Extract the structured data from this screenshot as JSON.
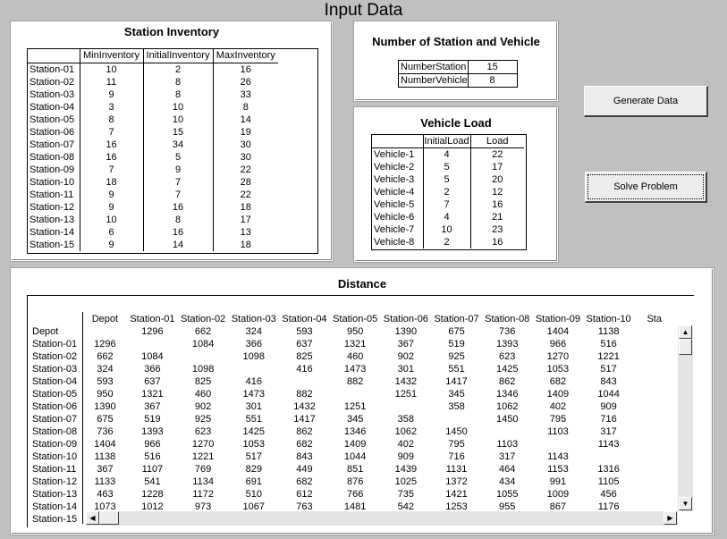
{
  "window": {
    "title": "Input Data"
  },
  "inventory": {
    "title": "Station Inventory",
    "headers": [
      "",
      "MinInventory",
      "InitialInventory",
      "MaxInventory"
    ],
    "rows": [
      [
        "Station-01",
        "10",
        "2",
        "16"
      ],
      [
        "Station-02",
        "11",
        "8",
        "26"
      ],
      [
        "Station-03",
        "9",
        "8",
        "33"
      ],
      [
        "Station-04",
        "3",
        "10",
        "8"
      ],
      [
        "Station-05",
        "8",
        "10",
        "14"
      ],
      [
        "Station-06",
        "7",
        "15",
        "19"
      ],
      [
        "Station-07",
        "16",
        "34",
        "30"
      ],
      [
        "Station-08",
        "16",
        "5",
        "30"
      ],
      [
        "Station-09",
        "7",
        "9",
        "22"
      ],
      [
        "Station-10",
        "18",
        "7",
        "28"
      ],
      [
        "Station-11",
        "9",
        "7",
        "22"
      ],
      [
        "Station-12",
        "9",
        "16",
        "18"
      ],
      [
        "Station-13",
        "10",
        "8",
        "17"
      ],
      [
        "Station-14",
        "6",
        "16",
        "13"
      ],
      [
        "Station-15",
        "9",
        "14",
        "18"
      ]
    ]
  },
  "counts": {
    "title": "Number of Station and Vehicle",
    "rows": [
      [
        "NumberStation",
        "15"
      ],
      [
        "NumberVehicle",
        "8"
      ]
    ]
  },
  "vehicles": {
    "title": "Vehicle Load",
    "headers": [
      "",
      "InitialLoad",
      "Load"
    ],
    "rows": [
      [
        "Vehicle-1",
        "4",
        "22"
      ],
      [
        "Vehicle-2",
        "5",
        "17"
      ],
      [
        "Vehicle-3",
        "5",
        "20"
      ],
      [
        "Vehicle-4",
        "2",
        "12"
      ],
      [
        "Vehicle-5",
        "7",
        "16"
      ],
      [
        "Vehicle-6",
        "4",
        "21"
      ],
      [
        "Vehicle-7",
        "10",
        "23"
      ],
      [
        "Vehicle-8",
        "2",
        "16"
      ]
    ]
  },
  "buttons": {
    "generate": "Generate Data",
    "solve": "Solve Problem"
  },
  "distance": {
    "title": "Distance",
    "headers": [
      "",
      "Depot",
      "Station-01",
      "Station-02",
      "Station-03",
      "Station-04",
      "Station-05",
      "Station-06",
      "Station-07",
      "Station-08",
      "Station-09",
      "Station-10",
      "Sta"
    ],
    "rows": [
      [
        "Depot",
        "",
        "1296",
        "662",
        "324",
        "593",
        "950",
        "1390",
        "675",
        "736",
        "1404",
        "1138",
        ""
      ],
      [
        "Station-01",
        "1296",
        "",
        "1084",
        "366",
        "637",
        "1321",
        "367",
        "519",
        "1393",
        "966",
        "516",
        ""
      ],
      [
        "Station-02",
        "662",
        "1084",
        "",
        "1098",
        "825",
        "460",
        "902",
        "925",
        "623",
        "1270",
        "1221",
        ""
      ],
      [
        "Station-03",
        "324",
        "366",
        "1098",
        "",
        "416",
        "1473",
        "301",
        "551",
        "1425",
        "1053",
        "517",
        ""
      ],
      [
        "Station-04",
        "593",
        "637",
        "825",
        "416",
        "",
        "882",
        "1432",
        "1417",
        "862",
        "682",
        "843",
        ""
      ],
      [
        "Station-05",
        "950",
        "1321",
        "460",
        "1473",
        "882",
        "",
        "1251",
        "345",
        "1346",
        "1409",
        "1044",
        ""
      ],
      [
        "Station-06",
        "1390",
        "367",
        "902",
        "301",
        "1432",
        "1251",
        "",
        "358",
        "1062",
        "402",
        "909",
        ""
      ],
      [
        "Station-07",
        "675",
        "519",
        "925",
        "551",
        "1417",
        "345",
        "358",
        "",
        "1450",
        "795",
        "716",
        ""
      ],
      [
        "Station-08",
        "736",
        "1393",
        "623",
        "1425",
        "862",
        "1346",
        "1062",
        "1450",
        "",
        "1103",
        "317",
        ""
      ],
      [
        "Station-09",
        "1404",
        "966",
        "1270",
        "1053",
        "682",
        "1409",
        "402",
        "795",
        "1103",
        "",
        "1143",
        ""
      ],
      [
        "Station-10",
        "1138",
        "516",
        "1221",
        "517",
        "843",
        "1044",
        "909",
        "716",
        "317",
        "1143",
        "",
        ""
      ],
      [
        "Station-11",
        "367",
        "1107",
        "769",
        "829",
        "449",
        "851",
        "1439",
        "1131",
        "464",
        "1153",
        "1316",
        ""
      ],
      [
        "Station-12",
        "1133",
        "541",
        "1134",
        "691",
        "682",
        "876",
        "1025",
        "1372",
        "434",
        "991",
        "1105",
        ""
      ],
      [
        "Station-13",
        "463",
        "1228",
        "1172",
        "510",
        "612",
        "766",
        "735",
        "1421",
        "1055",
        "1009",
        "456",
        ""
      ],
      [
        "Station-14",
        "1073",
        "1012",
        "973",
        "1067",
        "763",
        "1481",
        "542",
        "1253",
        "955",
        "867",
        "1176",
        ""
      ],
      [
        "Station-15",
        "",
        "",
        "",
        "",
        "",
        "",
        "",
        "",
        "",
        "",
        "",
        ""
      ]
    ]
  }
}
